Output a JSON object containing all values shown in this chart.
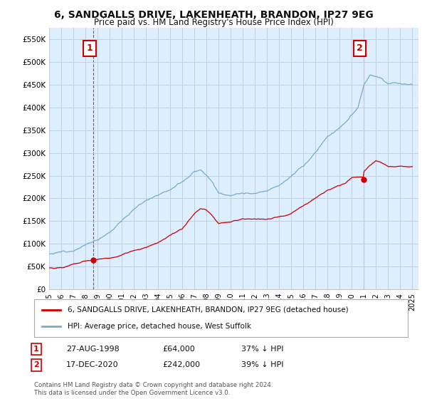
{
  "title": "6, SANDGALLS DRIVE, LAKENHEATH, BRANDON, IP27 9EG",
  "subtitle": "Price paid vs. HM Land Registry's House Price Index (HPI)",
  "ylabel_ticks": [
    "£0",
    "£50K",
    "£100K",
    "£150K",
    "£200K",
    "£250K",
    "£300K",
    "£350K",
    "£400K",
    "£450K",
    "£500K",
    "£550K"
  ],
  "ytick_values": [
    0,
    50000,
    100000,
    150000,
    200000,
    250000,
    300000,
    350000,
    400000,
    450000,
    500000,
    550000
  ],
  "ylim": [
    0,
    575000
  ],
  "xlim_start": 1995.0,
  "xlim_end": 2025.5,
  "xtick_years": [
    1995,
    1996,
    1997,
    1998,
    1999,
    2000,
    2001,
    2002,
    2003,
    2004,
    2005,
    2006,
    2007,
    2008,
    2009,
    2010,
    2011,
    2012,
    2013,
    2014,
    2015,
    2016,
    2017,
    2018,
    2019,
    2020,
    2021,
    2022,
    2023,
    2024,
    2025
  ],
  "sale1_x": 1998.65,
  "sale1_y": 64000,
  "sale1_label": "1",
  "sale1_date": "27-AUG-1998",
  "sale1_price": "£64,000",
  "sale1_hpi": "37% ↓ HPI",
  "sale2_x": 2020.96,
  "sale2_y": 242000,
  "sale2_label": "2",
  "sale2_date": "17-DEC-2020",
  "sale2_price": "£242,000",
  "sale2_hpi": "39% ↓ HPI",
  "red_line_color": "#cc0000",
  "blue_line_color": "#7aabcc",
  "chart_bg_color": "#ddeeff",
  "marker_fill_color": "#cc0000",
  "legend_label_red": "6, SANDGALLS DRIVE, LAKENHEATH, BRANDON, IP27 9EG (detached house)",
  "legend_label_blue": "HPI: Average price, detached house, West Suffolk",
  "footnote": "Contains HM Land Registry data © Crown copyright and database right 2024.\nThis data is licensed under the Open Government Licence v3.0.",
  "background_color": "#ffffff",
  "grid_color": "#c0d0e0",
  "annotation_box_color": "#cc0000",
  "hpi_waypoints_x": [
    1995,
    1996,
    1997,
    1998,
    1999,
    2000,
    2001,
    2002,
    2003,
    2004,
    2005,
    2006,
    2007,
    2007.5,
    2008,
    2008.5,
    2009,
    2010,
    2011,
    2012,
    2013,
    2014,
    2015,
    2016,
    2017,
    2018,
    2019,
    2020,
    2020.5,
    2021,
    2021.5,
    2022,
    2022.5,
    2023,
    2023.5,
    2024,
    2024.5,
    2025
  ],
  "hpi_waypoints_y": [
    78000,
    82000,
    88000,
    100000,
    110000,
    130000,
    155000,
    180000,
    200000,
    215000,
    230000,
    248000,
    270000,
    275000,
    265000,
    250000,
    225000,
    220000,
    222000,
    218000,
    220000,
    235000,
    255000,
    275000,
    305000,
    340000,
    360000,
    385000,
    400000,
    450000,
    470000,
    465000,
    460000,
    450000,
    455000,
    450000,
    448000,
    450000
  ],
  "red_waypoints_x": [
    1995,
    1996,
    1997,
    1998,
    1998.65,
    1999,
    2000,
    2001,
    2002,
    2003,
    2004,
    2005,
    2006,
    2007,
    2007.5,
    2008,
    2008.5,
    2009,
    2010,
    2011,
    2012,
    2013,
    2014,
    2015,
    2016,
    2017,
    2018,
    2019,
    2019.5,
    2020,
    2020.96,
    2021,
    2021.5,
    2022,
    2022.5,
    2023,
    2023.5,
    2024,
    2025
  ],
  "red_waypoints_y": [
    47000,
    49000,
    56000,
    62000,
    64000,
    65000,
    68000,
    74000,
    82000,
    92000,
    102000,
    115000,
    128000,
    160000,
    172000,
    168000,
    155000,
    138000,
    140000,
    148000,
    148000,
    148000,
    155000,
    163000,
    180000,
    200000,
    215000,
    225000,
    230000,
    242000,
    242000,
    255000,
    270000,
    280000,
    275000,
    268000,
    270000,
    272000,
    270000
  ]
}
